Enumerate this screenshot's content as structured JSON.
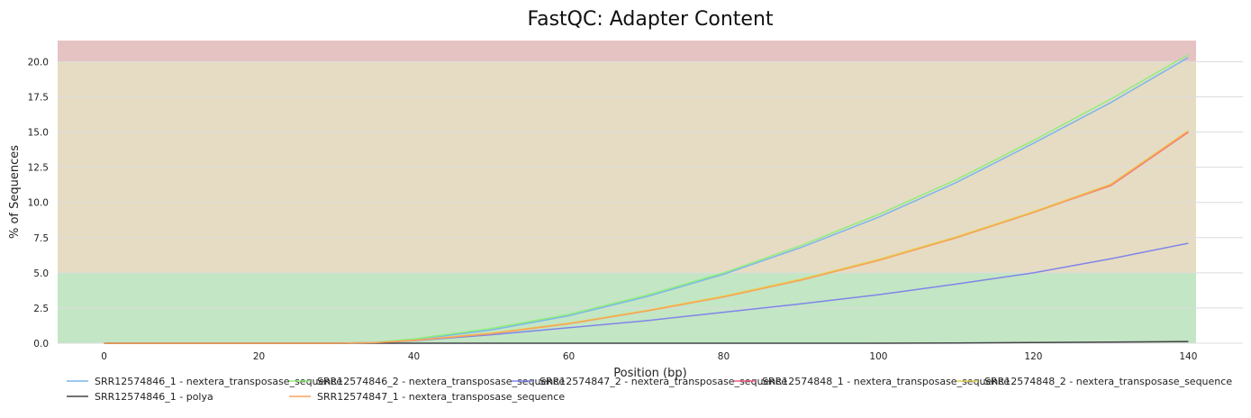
{
  "chart_data": {
    "type": "line",
    "title": "FastQC: Adapter Content",
    "xlabel": "Position (bp)",
    "ylabel": "% of Sequences",
    "xlim": [
      -6,
      141
    ],
    "ylim": [
      0,
      21.5
    ],
    "x_ticks": [
      0,
      20,
      40,
      60,
      80,
      100,
      120,
      140
    ],
    "y_ticks": [
      0.0,
      2.5,
      5.0,
      7.5,
      10.0,
      12.5,
      15.0,
      17.5,
      20.0
    ],
    "y_tick_labels": [
      "0.0",
      "2.5",
      "5.0",
      "7.5",
      "10.0",
      "12.5",
      "15.0",
      "17.5",
      "20.0"
    ],
    "grid": true,
    "legend_placement": "bottom",
    "bands": [
      {
        "from": 0,
        "to": 5,
        "color": "#c3e6c4"
      },
      {
        "from": 5,
        "to": 20,
        "color": "#e6dcc3"
      },
      {
        "from": 20,
        "to": 21.5,
        "color": "#e6c3c3"
      }
    ],
    "x": [
      0,
      20,
      30,
      35,
      40,
      50,
      60,
      70,
      80,
      90,
      100,
      110,
      120,
      130,
      140
    ],
    "series": [
      {
        "name": "SRR12574846_1 - nextera_transposase_sequence",
        "color": "#7cb5ec",
        "values": [
          0,
          0,
          0,
          0.05,
          0.25,
          0.95,
          1.95,
          3.3,
          4.9,
          6.8,
          8.95,
          11.4,
          14.2,
          17.1,
          20.3
        ]
      },
      {
        "name": "SRR12574846_2 - nextera_transposase_sequence",
        "color": "#90ed7d",
        "values": [
          0,
          0,
          0,
          0.06,
          0.3,
          1.05,
          2.05,
          3.4,
          5.0,
          6.95,
          9.15,
          11.6,
          14.4,
          17.35,
          20.5
        ]
      },
      {
        "name": "SRR12574847_2 - nextera_transposase_sequence",
        "color": "#8085e9",
        "values": [
          0,
          0,
          0,
          0.03,
          0.18,
          0.6,
          1.1,
          1.6,
          2.2,
          2.8,
          3.45,
          4.2,
          5.0,
          6.0,
          7.1
        ]
      },
      {
        "name": "SRR12574848_1 - nextera_transposase_sequence",
        "color": "#f15c80",
        "values": [
          0,
          0,
          0,
          0.04,
          0.2,
          0.7,
          1.4,
          2.3,
          3.3,
          4.5,
          5.9,
          7.5,
          9.3,
          11.2,
          15.0
        ]
      },
      {
        "name": "SRR12574848_2 - nextera_transposase_sequence",
        "color": "#e4d354",
        "values": [
          0,
          0,
          0,
          0.04,
          0.21,
          0.72,
          1.42,
          2.32,
          3.35,
          4.55,
          5.95,
          7.55,
          9.35,
          11.3,
          15.1
        ]
      },
      {
        "name": "SRR12574846_1 - polya",
        "color": "#434348",
        "values": [
          0,
          0,
          0,
          0,
          0,
          0,
          0,
          0,
          0,
          0,
          0,
          0.02,
          0.05,
          0.08,
          0.12
        ]
      },
      {
        "name": "SRR12574847_1 - nextera_transposase_sequence",
        "color": "#f7a35c",
        "values": [
          0,
          0,
          0,
          0.04,
          0.2,
          0.68,
          1.38,
          2.28,
          3.28,
          4.48,
          5.88,
          7.48,
          9.28,
          11.25,
          15.05
        ]
      }
    ]
  }
}
